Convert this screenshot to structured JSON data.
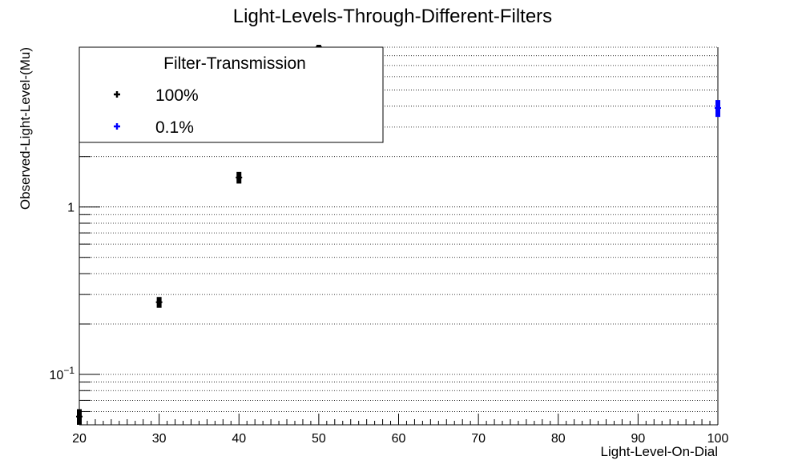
{
  "chart_data": {
    "type": "scatter",
    "title": "Light-Levels-Through-Different-Filters",
    "xlabel": "Light-Level-On-Dial",
    "ylabel": "Observed-Light-Level-(Mu)",
    "xlim": [
      20,
      100
    ],
    "ylim": [
      0.05,
      9.0
    ],
    "ylog": true,
    "grid": {
      "x": false,
      "y": true,
      "style": "dotted"
    },
    "x_ticks": [
      20,
      30,
      40,
      50,
      60,
      70,
      80,
      90,
      100
    ],
    "y_ticks": [
      {
        "value": 0.1,
        "base": "10",
        "exp": "−1"
      },
      {
        "value": 1,
        "text": "1"
      }
    ],
    "legend": {
      "title": "Filter-Transmission",
      "position": "top-left"
    },
    "series": [
      {
        "name": "100%",
        "color": "#000000",
        "points": [
          {
            "x": 20,
            "y": 0.056,
            "err": 0.006
          },
          {
            "x": 30,
            "y": 0.27,
            "err": 0.02
          },
          {
            "x": 40,
            "y": 1.5,
            "err": 0.12
          },
          {
            "x": 50,
            "y": 9.0,
            "err": 0.3
          }
        ]
      },
      {
        "name": "0.1%",
        "color": "#0000ff",
        "points": [
          {
            "x": 100,
            "y": 3.9,
            "err": 0.45
          }
        ]
      }
    ]
  }
}
